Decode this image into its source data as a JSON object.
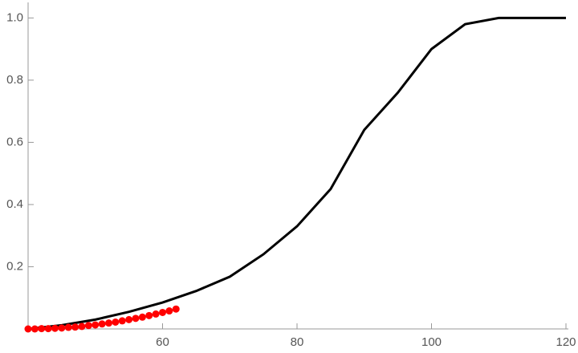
{
  "chart_data": {
    "type": "line",
    "xlim": [
      40,
      120
    ],
    "ylim": [
      0,
      1.05
    ],
    "xticks": [
      60,
      80,
      100,
      120
    ],
    "yticks": [
      {
        "value": 0.2,
        "label": "0.2"
      },
      {
        "value": 0.4,
        "label": "0.4"
      },
      {
        "value": 0.6,
        "label": "0.6"
      },
      {
        "value": 0.8,
        "label": "0.8"
      },
      {
        "value": 1.0,
        "label": "1.0"
      }
    ],
    "series": [
      {
        "type": "line",
        "color": "#000000",
        "x": [
          40,
          45,
          50,
          55,
          60,
          65,
          70,
          75,
          80,
          85,
          90,
          95,
          100,
          105,
          110,
          115,
          120
        ],
        "values": [
          0,
          0.012,
          0.03,
          0.055,
          0.085,
          0.122,
          0.168,
          0.24,
          0.33,
          0.45,
          0.64,
          0.76,
          0.9,
          0.98,
          1.0,
          1.0,
          1.0
        ]
      },
      {
        "type": "scatter",
        "color": "#ff0000",
        "x": [
          40,
          41,
          42,
          43,
          44,
          45,
          46,
          47,
          48,
          49,
          50,
          51,
          52,
          53,
          54,
          55,
          56,
          57,
          58,
          59,
          60,
          61,
          62
        ],
        "values": [
          0,
          0,
          0.001,
          0.001,
          0.002,
          0.003,
          0.005,
          0.006,
          0.008,
          0.011,
          0.013,
          0.016,
          0.019,
          0.022,
          0.026,
          0.03,
          0.034,
          0.038,
          0.043,
          0.048,
          0.053,
          0.058,
          0.064
        ]
      }
    ]
  }
}
